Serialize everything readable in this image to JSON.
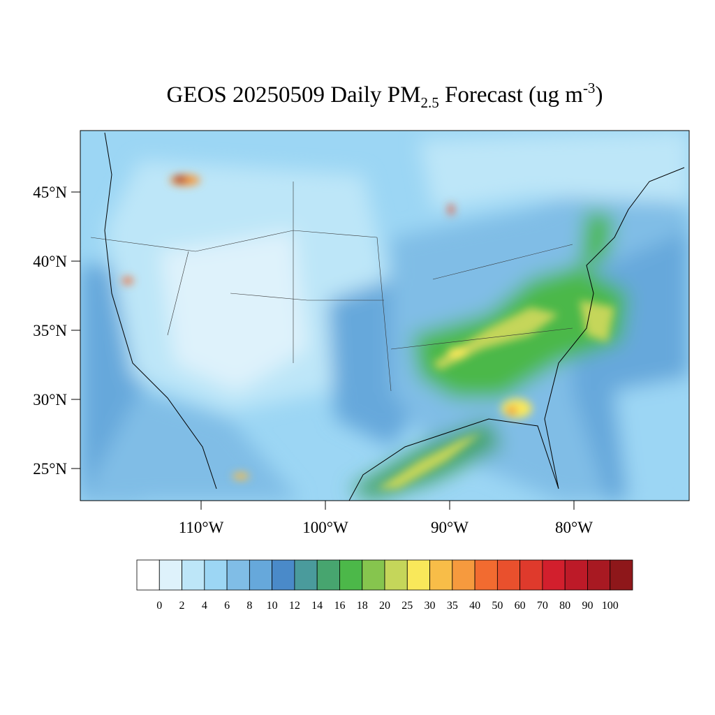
{
  "title": {
    "main": "GEOS 20250509 Daily PM",
    "subscript": "2.5",
    "middle": " Forecast (ug m",
    "superscript": "-3",
    "end": ")"
  },
  "map": {
    "lat_ticks": [
      {
        "value": 45,
        "label": "45°N"
      },
      {
        "value": 40,
        "label": "40°N"
      },
      {
        "value": 35,
        "label": "35°N"
      },
      {
        "value": 30,
        "label": "30°N"
      },
      {
        "value": 25,
        "label": "25°N"
      }
    ],
    "lon_ticks": [
      {
        "value": -110,
        "label": "110°W"
      },
      {
        "value": -100,
        "label": "100°W"
      },
      {
        "value": -90,
        "label": "90°W"
      },
      {
        "value": -80,
        "label": "80°W"
      }
    ]
  },
  "colorbar": {
    "colors": [
      "#ffffff",
      "#def2fb",
      "#bde6f8",
      "#9cd6f4",
      "#80bde6",
      "#66a8db",
      "#4a8ac9",
      "#4a9b9c",
      "#47a56f",
      "#4cb849",
      "#86c54e",
      "#c5d65a",
      "#f9e85a",
      "#f8bd48",
      "#f69a3e",
      "#f26b30",
      "#e9502d",
      "#df3a2c",
      "#d21f2d",
      "#bd1a28",
      "#a81922",
      "#8e171a"
    ],
    "ticks": [
      0,
      2,
      4,
      6,
      8,
      10,
      12,
      14,
      16,
      18,
      20,
      25,
      30,
      35,
      40,
      50,
      60,
      70,
      80,
      90,
      100
    ]
  }
}
